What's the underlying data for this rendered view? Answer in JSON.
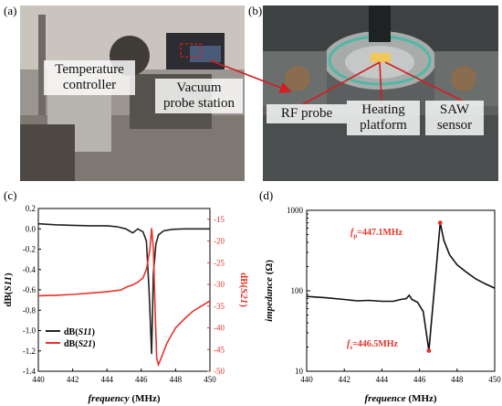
{
  "labels": {
    "a": "(a)",
    "b": "(b)",
    "c": "(c)",
    "d": "(d)"
  },
  "photo_a": {
    "callout_1": [
      "Temperature",
      "controller"
    ],
    "callout_2": [
      "Vacuum",
      "probe station"
    ]
  },
  "photo_b": {
    "callout_1": "RF probe",
    "callout_2": [
      "Heating",
      "platform"
    ],
    "callout_3": [
      "SAW",
      "sensor"
    ]
  },
  "colors": {
    "black_series": "#222222",
    "red_series": "#e8322a",
    "marker": "#e8322a"
  },
  "chart_data": [
    {
      "type": "line",
      "xlabel_italic": "frequency",
      "xlabel_unit": "(MHz)",
      "ylabel_left_prefix": "dB(",
      "ylabel_left_var": "S11",
      "ylabel_left_suffix": ")",
      "ylabel_right_prefix": "dB(",
      "ylabel_right_var": "S21",
      "ylabel_right_suffix": ")",
      "xlim": [
        440,
        450
      ],
      "ylim_left": [
        -1.4,
        0.2
      ],
      "ylim_right": [
        -50,
        -12.5
      ],
      "x_ticks": [
        "440",
        "442",
        "444",
        "446",
        "448",
        "450"
      ],
      "y_left_ticks": [
        "-1.4",
        "-1.2",
        "-1.0",
        "-0.8",
        "-0.6",
        "-0.4",
        "-0.2",
        "0.0",
        "0.2"
      ],
      "y_right_ticks": [
        "-15",
        "-20",
        "-25",
        "-30",
        "-35",
        "-40",
        "-45",
        "-50"
      ],
      "legend": [
        {
          "prefix": "dB(",
          "var": "S11",
          "suffix": ")"
        },
        {
          "prefix": "dB(",
          "var": "S21",
          "suffix": ")"
        }
      ],
      "series": [
        {
          "axis": "left",
          "x": [
            440,
            441,
            442,
            443,
            444,
            444.6,
            445.1,
            445.5,
            445.8,
            446.1,
            446.3,
            446.45,
            446.6,
            446.7,
            446.85,
            447.0,
            447.3,
            447.8,
            448.5,
            449.2,
            450
          ],
          "y": [
            0.05,
            0.04,
            0.035,
            0.03,
            0.03,
            0.02,
            0.0,
            -0.04,
            0.0,
            -0.03,
            -0.12,
            -0.6,
            -1.23,
            -0.45,
            -0.15,
            -0.06,
            -0.02,
            -0.005,
            0.0,
            0.0,
            0.0
          ]
        },
        {
          "axis": "right",
          "x": [
            440,
            441,
            442,
            443,
            444,
            444.8,
            445.2,
            445.45,
            445.8,
            446.1,
            446.3,
            446.5,
            446.6,
            446.7,
            446.8,
            446.9,
            447.0,
            447.2,
            447.5,
            448,
            448.5,
            449,
            449.5,
            450
          ],
          "y": [
            -32.6,
            -32.5,
            -32.3,
            -32.0,
            -31.7,
            -31.3,
            -30.5,
            -30.2,
            -29.5,
            -28.5,
            -26.5,
            -22.0,
            -17.0,
            -21.5,
            -35.0,
            -47.0,
            -48.5,
            -46.5,
            -43.5,
            -40.0,
            -38.0,
            -36.2,
            -35.0,
            -33.8
          ]
        }
      ]
    },
    {
      "type": "line",
      "xlabel_italic": "frequence",
      "xlabel_unit": "(MHz)",
      "ylabel_italic": "impedance",
      "ylabel_unit": "(Ω)",
      "xlim": [
        440,
        450
      ],
      "ylim": [
        10,
        1000
      ],
      "y_scale": "log",
      "x_ticks": [
        "440",
        "442",
        "444",
        "446",
        "448",
        "450"
      ],
      "y_ticks": [
        "10",
        "100",
        "1000"
      ],
      "annotations": [
        {
          "sym": "f",
          "sub": "p",
          "text": "=447.1MHz",
          "x": 447.1,
          "y": 700
        },
        {
          "sym": "f",
          "sub": "s",
          "text": "=446.5MHz",
          "x": 446.5,
          "y": 18
        }
      ],
      "series": [
        {
          "x": [
            440,
            441,
            442,
            442.7,
            443.3,
            444,
            444.6,
            445.0,
            445.3,
            445.45,
            445.6,
            445.9,
            446.2,
            446.5,
            446.7,
            446.9,
            447.1,
            447.3,
            447.6,
            448,
            448.5,
            449,
            449.5,
            450
          ],
          "y": [
            85,
            82,
            78,
            75,
            76,
            74,
            74,
            78,
            80,
            88,
            78,
            72,
            55,
            18,
            60,
            200,
            700,
            420,
            280,
            210,
            170,
            140,
            122,
            108
          ]
        }
      ]
    }
  ]
}
